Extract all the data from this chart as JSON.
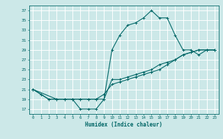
{
  "xlabel": "Humidex (Indice chaleur)",
  "bg_color": "#cce8e8",
  "grid_color": "#ffffff",
  "line_color": "#006666",
  "xlim": [
    -0.5,
    23.5
  ],
  "ylim": [
    16,
    38
  ],
  "xticks": [
    0,
    1,
    2,
    3,
    4,
    5,
    6,
    7,
    8,
    9,
    10,
    11,
    12,
    13,
    14,
    15,
    16,
    17,
    18,
    19,
    20,
    21,
    22,
    23
  ],
  "yticks": [
    17,
    19,
    21,
    23,
    25,
    27,
    29,
    31,
    33,
    35,
    37
  ],
  "line1_x": [
    0,
    1,
    2,
    3,
    4,
    5,
    6,
    7,
    8,
    9,
    10,
    11,
    12,
    13,
    14,
    15,
    16,
    17,
    18,
    19,
    20,
    21,
    22,
    23
  ],
  "line1_y": [
    21,
    20,
    19,
    19,
    19,
    19,
    17,
    17,
    17,
    19,
    29,
    32,
    34,
    34.5,
    35.5,
    37,
    35.5,
    35.5,
    32,
    29,
    29,
    28,
    29,
    29
  ],
  "line2_x": [
    0,
    1,
    2,
    3,
    4,
    5,
    6,
    7,
    8,
    9,
    10,
    11,
    12,
    13,
    14,
    15,
    16,
    17,
    18,
    19,
    20,
    21,
    22,
    23
  ],
  "line2_y": [
    21,
    20,
    19,
    19,
    19,
    19,
    19,
    19,
    19,
    20,
    22,
    22.5,
    23,
    23.5,
    24,
    24.5,
    25,
    26,
    27,
    28,
    28.5,
    29,
    29,
    29
  ],
  "line3_x": [
    0,
    3,
    4,
    5,
    6,
    7,
    8,
    9,
    10,
    11,
    12,
    13,
    14,
    15,
    16,
    17,
    18,
    19,
    20,
    21,
    22,
    23
  ],
  "line3_y": [
    21,
    19,
    19,
    19,
    19,
    19,
    19,
    19,
    23,
    23,
    23.5,
    24,
    24.5,
    25,
    26,
    26.5,
    27,
    28,
    28.5,
    29,
    29,
    29
  ],
  "marker_size": 2.5,
  "linewidth": 0.8
}
